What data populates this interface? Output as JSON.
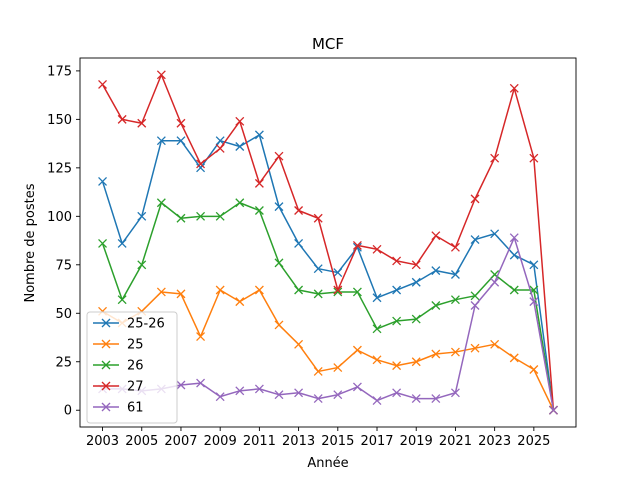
{
  "chart_data": {
    "type": "line",
    "title": "MCF",
    "xlabel": "Année",
    "ylabel": "Nombre de postes",
    "xlim": [
      2001.85,
      2027.15
    ],
    "ylim": [
      -8.65,
      181.65
    ],
    "xticks": [
      2003,
      2005,
      2007,
      2009,
      2011,
      2013,
      2015,
      2017,
      2019,
      2021,
      2023,
      2025
    ],
    "yticks": [
      0,
      25,
      50,
      75,
      100,
      125,
      150,
      175
    ],
    "grid": false,
    "legend_position": "lower-left",
    "marker": "x",
    "x": [
      2003,
      2004,
      2005,
      2006,
      2007,
      2008,
      2009,
      2010,
      2011,
      2012,
      2013,
      2014,
      2015,
      2016,
      2017,
      2018,
      2019,
      2020,
      2021,
      2022,
      2023,
      2024,
      2025,
      2026
    ],
    "series": [
      {
        "name": "25-26",
        "color": "#1f77b4",
        "values": [
          118,
          86,
          100,
          139,
          139,
          125,
          139,
          136,
          142,
          105,
          86,
          73,
          71,
          84,
          58,
          62,
          66,
          72,
          70,
          88,
          91,
          80,
          75,
          0
        ]
      },
      {
        "name": "25",
        "color": "#ff7f0e",
        "values": [
          51,
          45,
          51,
          61,
          60,
          38,
          62,
          56,
          62,
          44,
          34,
          20,
          22,
          31,
          26,
          23,
          25,
          29,
          30,
          32,
          34,
          27,
          21,
          0
        ]
      },
      {
        "name": "26",
        "color": "#2ca02c",
        "values": [
          86,
          57,
          75,
          107,
          99,
          100,
          100,
          107,
          103,
          76,
          62,
          60,
          61,
          61,
          42,
          46,
          47,
          54,
          57,
          59,
          70,
          62,
          62,
          0
        ]
      },
      {
        "name": "27",
        "color": "#d62728",
        "values": [
          168,
          150,
          148,
          173,
          148,
          127,
          135,
          149,
          117,
          131,
          103,
          99,
          62,
          85,
          83,
          77,
          75,
          90,
          84,
          109,
          130,
          166,
          130,
          0
        ]
      },
      {
        "name": "61",
        "color": "#9467bd",
        "values": [
          11,
          11,
          10,
          11,
          13,
          14,
          7,
          10,
          11,
          8,
          9,
          6,
          8,
          12,
          5,
          9,
          6,
          6,
          9,
          54,
          66,
          89,
          56,
          0
        ]
      }
    ]
  }
}
